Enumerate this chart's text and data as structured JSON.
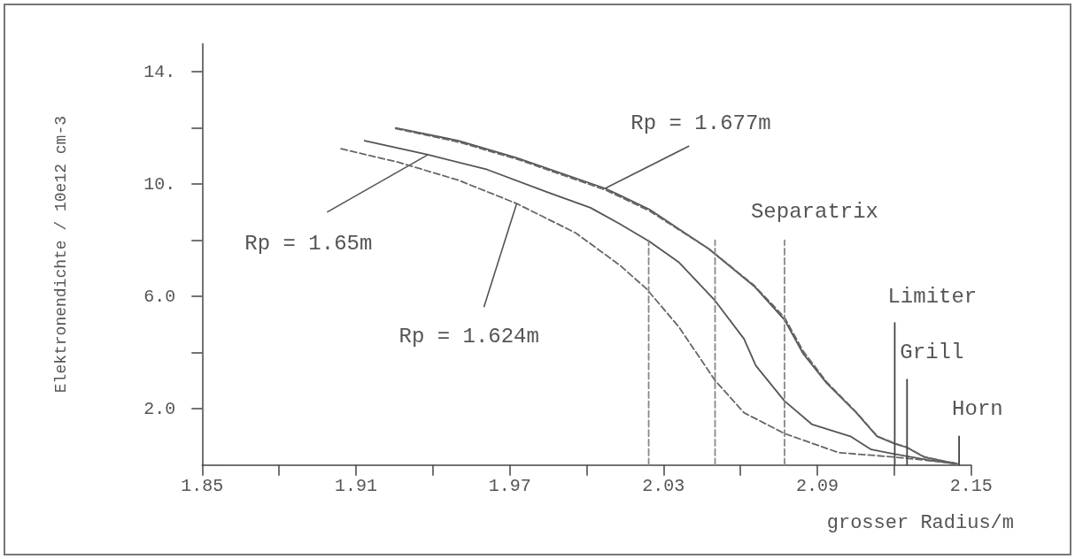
{
  "chart_data": {
    "type": "line",
    "xlabel": "grosser Radius/m",
    "ylabel": "Elektronendichte / 10e12 cm-3",
    "xlim": [
      1.85,
      2.15
    ],
    "ylim": [
      0,
      15
    ],
    "xticks": [
      1.85,
      {
        "value": 1.88,
        "label": null
      },
      1.91,
      {
        "value": 1.94,
        "label": null
      },
      1.97,
      {
        "value": 2.0,
        "label": null
      },
      2.03,
      {
        "value": 2.06,
        "label": null
      },
      2.09,
      {
        "value": 2.12,
        "label": null
      },
      2.15
    ],
    "yticks": [
      {
        "value": 2,
        "label": "2.0"
      },
      {
        "value": 4,
        "label": null
      },
      {
        "value": 6,
        "label": "6.0"
      },
      {
        "value": 8,
        "label": null
      },
      {
        "value": 10,
        "label": "10."
      },
      {
        "value": 12,
        "label": null
      },
      {
        "value": 14,
        "label": "14."
      }
    ],
    "grid": false,
    "marker": "none",
    "series": [
      {
        "color": "#555555",
        "line_style": "solid",
        "x": [
          1.9255,
          1.95,
          1.9726,
          2.0072,
          2.013,
          2.0245,
          2.0476,
          2.0653,
          2.0772,
          2.0845,
          2.0937,
          2.1052,
          2.1133,
          2.1202,
          2.125,
          2.1317,
          2.1398,
          2.1445
        ],
        "values": [
          12.0,
          11.55,
          10.94,
          9.85,
          9.6,
          9.1,
          7.7,
          6.37,
          5.17,
          3.96,
          2.91,
          1.86,
          1.02,
          0.76,
          0.62,
          0.28,
          0.13,
          0.05
        ]
      },
      {
        "color": "#666666",
        "line_style": "dashed",
        "x": [
          1.9255,
          1.95,
          1.9726,
          2.0072,
          2.013,
          2.0245,
          2.0476,
          2.0653,
          2.0772,
          2.0845,
          2.0937,
          2.1052,
          2.1133,
          2.1202,
          2.125,
          2.1317,
          2.1398,
          2.1445
        ],
        "values": [
          11.98,
          11.5,
          10.9,
          9.8,
          9.55,
          9.05,
          7.7,
          6.4,
          5.25,
          4.05,
          2.95,
          1.88,
          1.03,
          0.77,
          0.63,
          0.29,
          0.13,
          0.05
        ]
      },
      {
        "color": "#555555",
        "line_style": "solid",
        "x": [
          1.9134,
          1.9381,
          1.9612,
          1.9843,
          2.0015,
          2.013,
          2.0246,
          2.0361,
          2.0501,
          2.0614,
          2.066,
          2.0772,
          2.088,
          2.1029,
          2.111,
          2.1202,
          2.1329,
          2.1431
        ],
        "values": [
          11.55,
          11.05,
          10.52,
          9.73,
          9.16,
          8.58,
          7.95,
          7.21,
          5.85,
          4.49,
          3.54,
          2.28,
          1.44,
          1.02,
          0.55,
          0.39,
          0.18,
          0.05
        ]
      },
      {
        "color": "#666666",
        "line_style": "dashed",
        "x": [
          1.9042,
          1.9266,
          1.9497,
          1.9727,
          1.9958,
          2.013,
          2.0234,
          2.0361,
          2.0501,
          2.0614,
          2.0772,
          2.0983,
          2.1202,
          2.1375,
          2.1445
        ],
        "values": [
          11.26,
          10.78,
          10.15,
          9.31,
          8.26,
          7.11,
          6.27,
          4.9,
          3.01,
          1.86,
          1.12,
          0.44,
          0.28,
          0.12,
          0.05
        ]
      },
      {
        "color": "#888888",
        "line_style": "dashed",
        "x": [
          2.0242,
          2.0242
        ],
        "values": [
          0,
          8.0
        ]
      },
      {
        "color": "#888888",
        "line_style": "dashed",
        "x": [
          2.0501,
          2.0501
        ],
        "values": [
          0,
          8.0
        ]
      },
      {
        "color": "#888888",
        "line_style": "dashed",
        "x": [
          2.0772,
          2.0772
        ],
        "values": [
          0,
          8.0
        ]
      },
      {
        "color": "#444444",
        "line_style": "solid",
        "x": [
          2.1202,
          2.1202
        ],
        "values": [
          0,
          5.06
        ]
      },
      {
        "color": "#444444",
        "line_style": "solid",
        "x": [
          2.125,
          2.125
        ],
        "values": [
          0,
          3.04
        ]
      },
      {
        "color": "#444444",
        "line_style": "solid",
        "x": [
          2.1453,
          2.1453
        ],
        "values": [
          0,
          1.02
        ]
      }
    ],
    "annotations": [
      {
        "text": "Rp = 1.677m",
        "x": 2.0072,
        "y": 9.85
      },
      {
        "text": "Rp = 1.65m",
        "x": 1.9381,
        "y": 11.05
      },
      {
        "text": "Rp = 1.624m",
        "x": 1.9727,
        "y": 9.31
      },
      {
        "text": "Separatrix",
        "x": 2.0772,
        "y": 8.0
      },
      {
        "text": "Limiter",
        "x": 2.1202,
        "y": 5.06
      },
      {
        "text": "Grill",
        "x": 2.125,
        "y": 3.04
      },
      {
        "text": "Horn",
        "x": 2.1453,
        "y": 1.02
      }
    ]
  }
}
